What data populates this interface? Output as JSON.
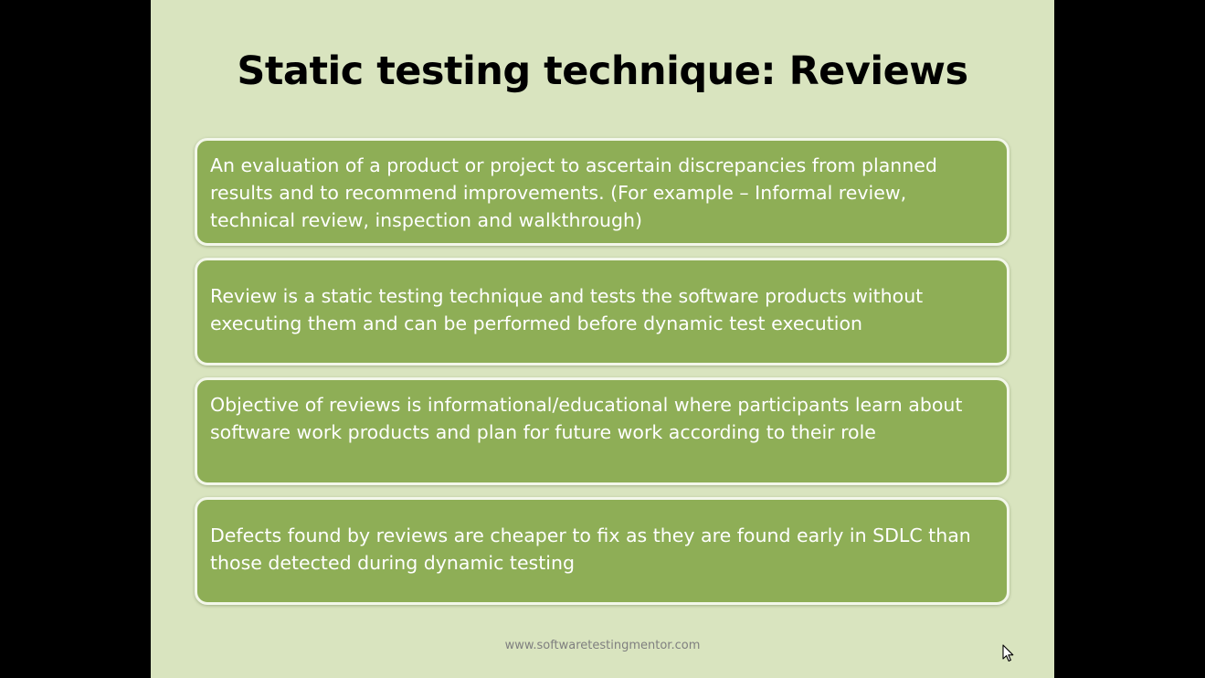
{
  "slide": {
    "title": "Static testing technique: Reviews",
    "points": [
      "An evaluation of a product or project to ascertain discrepancies from planned results and to recommend improvements. (For example – Informal review, technical review, inspection and walkthrough)",
      "Review is a static testing technique and tests the software products without executing them and can be performed before dynamic test execution",
      "Objective of reviews is informational/educational  where participants learn about software work products and plan for future work according to their role",
      "Defects found by reviews are cheaper to fix as they are found early in SDLC than those detected during dynamic testing"
    ],
    "footer": "www.softwaretestingmentor.com"
  },
  "colors": {
    "slide_background": "#d9e4bf",
    "box_fill": "#8eae56",
    "box_border": "#f3f7ea",
    "text_on_box": "#ffffff",
    "footer_text": "#7f7f7f"
  },
  "icons": {
    "cursor": "mouse-pointer-icon"
  }
}
